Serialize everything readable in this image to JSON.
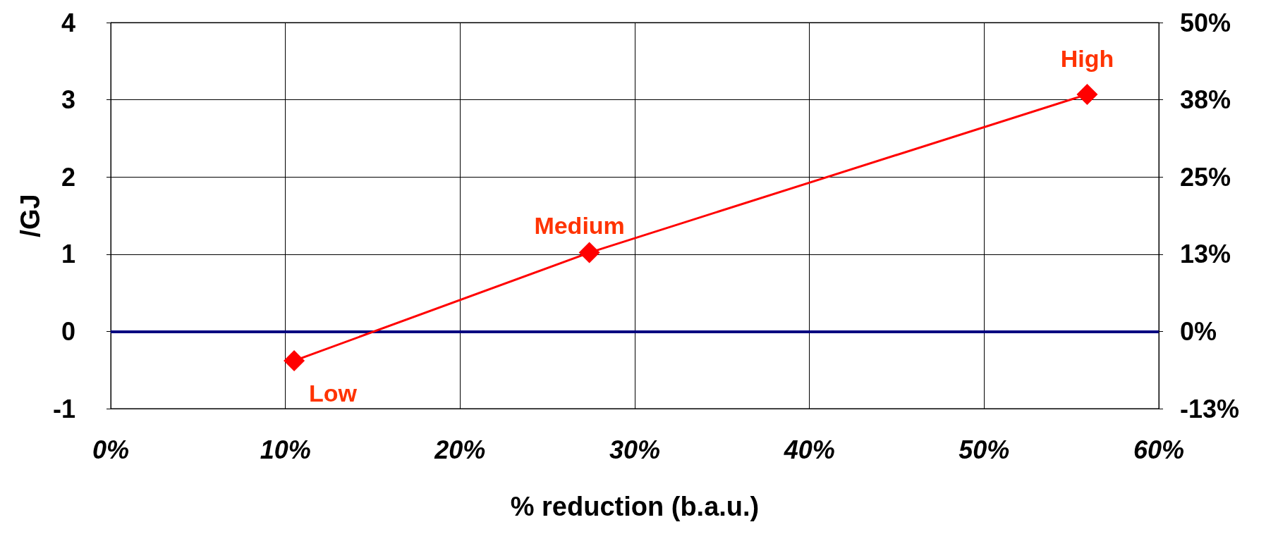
{
  "chart_data": {
    "type": "line",
    "xlabel": "% reduction (b.a.u.)",
    "ylabel": "/GJ",
    "x": [
      10.5,
      27.4,
      55.9
    ],
    "series": [
      {
        "color": "#ff0000",
        "values": [
          -0.38,
          1.02,
          3.07
        ]
      }
    ],
    "marker": "diamond",
    "line_style": "solid",
    "grid": true,
    "xlim": [
      0,
      60
    ],
    "xticks": [
      {
        "value": 0,
        "label": "0%"
      },
      {
        "value": 10,
        "label": "10%"
      },
      {
        "value": 20,
        "label": "20%"
      },
      {
        "value": 30,
        "label": "30%"
      },
      {
        "value": 40,
        "label": "40%"
      },
      {
        "value": 50,
        "label": "50%"
      },
      {
        "value": 60,
        "label": "60%"
      }
    ],
    "ylim": [
      -1,
      4
    ],
    "yticks": [
      -1,
      0,
      1,
      2,
      3,
      4
    ],
    "y2lim": [
      -12.5,
      50
    ],
    "y2ticks": [
      {
        "value": -12.5,
        "label": "-13%"
      },
      {
        "value": 0,
        "label": "0%"
      },
      {
        "value": 12.5,
        "label": "13%"
      },
      {
        "value": 25,
        "label": "25%"
      },
      {
        "value": 37.5,
        "label": "38%"
      },
      {
        "value": 50,
        "label": "50%"
      }
    ],
    "ref_lines": [
      {
        "axis": "y",
        "value": 0,
        "color": "#000080",
        "line_style": "solid"
      }
    ],
    "annotations": [
      {
        "text": "Low",
        "x": 10.5,
        "y": -0.38
      },
      {
        "text": "Medium",
        "x": 27.4,
        "y": 1.02
      },
      {
        "text": "High",
        "x": 55.9,
        "y": 3.07
      }
    ]
  }
}
